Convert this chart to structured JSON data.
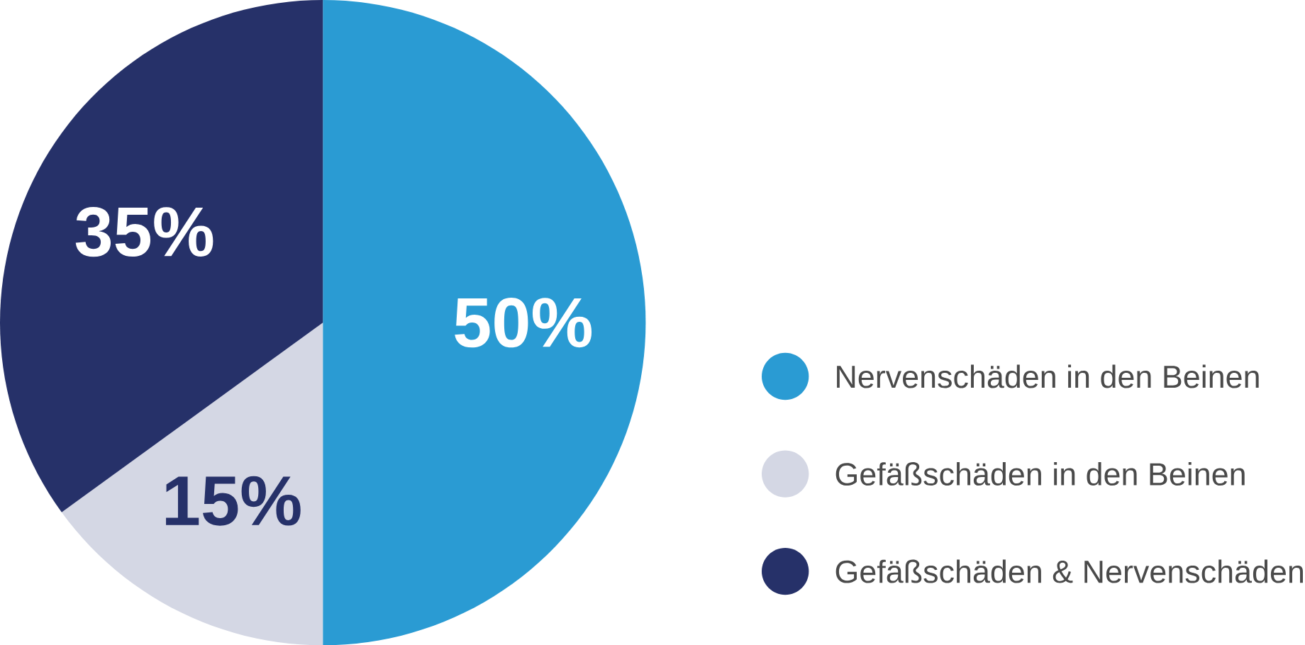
{
  "chart_data": {
    "type": "pie",
    "categories": [
      "Nervenschäden in den Beinen",
      "Gefäßschäden in den Beinen",
      "Gefäßschäden & Nervenschäden"
    ],
    "values": [
      50,
      15,
      35
    ],
    "colors": [
      "#2a9bd3",
      "#d4d7e4",
      "#263169"
    ],
    "value_labels": [
      "50%",
      "15%",
      "35%"
    ],
    "legend": "right"
  }
}
